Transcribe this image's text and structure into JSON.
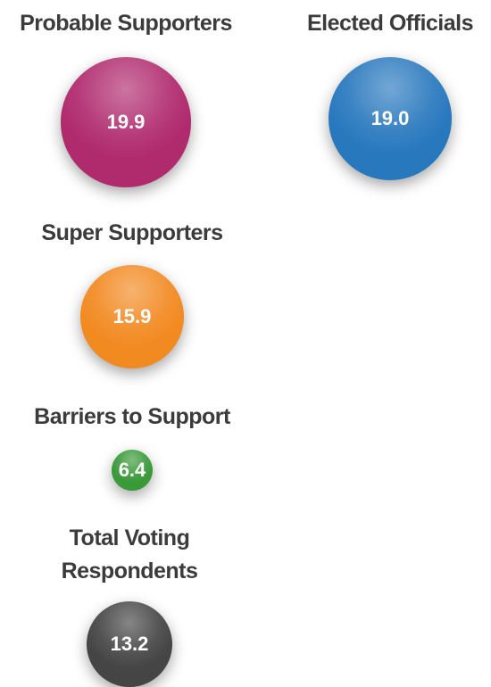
{
  "chart_data": {
    "type": "bubble",
    "categories": [
      "Probable Supporters",
      "Elected Officials",
      "Super Supporters",
      "Barriers to Support",
      "Total Voting Respondents"
    ],
    "values": [
      19.9,
      19.0,
      15.9,
      6.4,
      13.2
    ],
    "value_labels": [
      "19.9",
      "19.0",
      "15.9",
      "6.4",
      "13.2"
    ],
    "colors": [
      "#b02a6e",
      "#2878be",
      "#f28a22",
      "#3a9a3a",
      "#454545"
    ]
  }
}
